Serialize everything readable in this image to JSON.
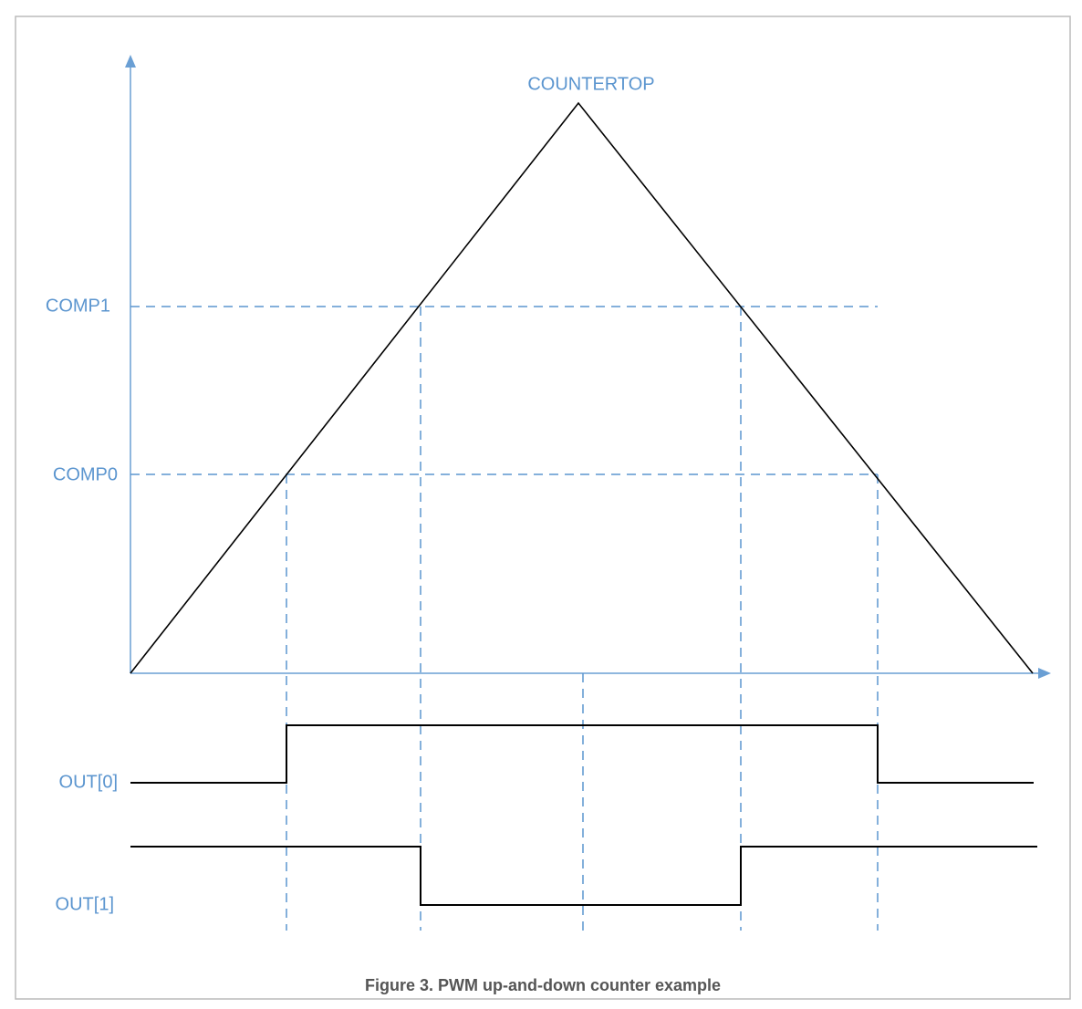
{
  "labels": {
    "countertop": "COUNTERTOP",
    "comp1": "COMP1",
    "comp0": "COMP0",
    "out0": "OUT[0]",
    "out1": "OUT[1]"
  },
  "caption": "Figure 3. PWM up-and-down counter example"
}
